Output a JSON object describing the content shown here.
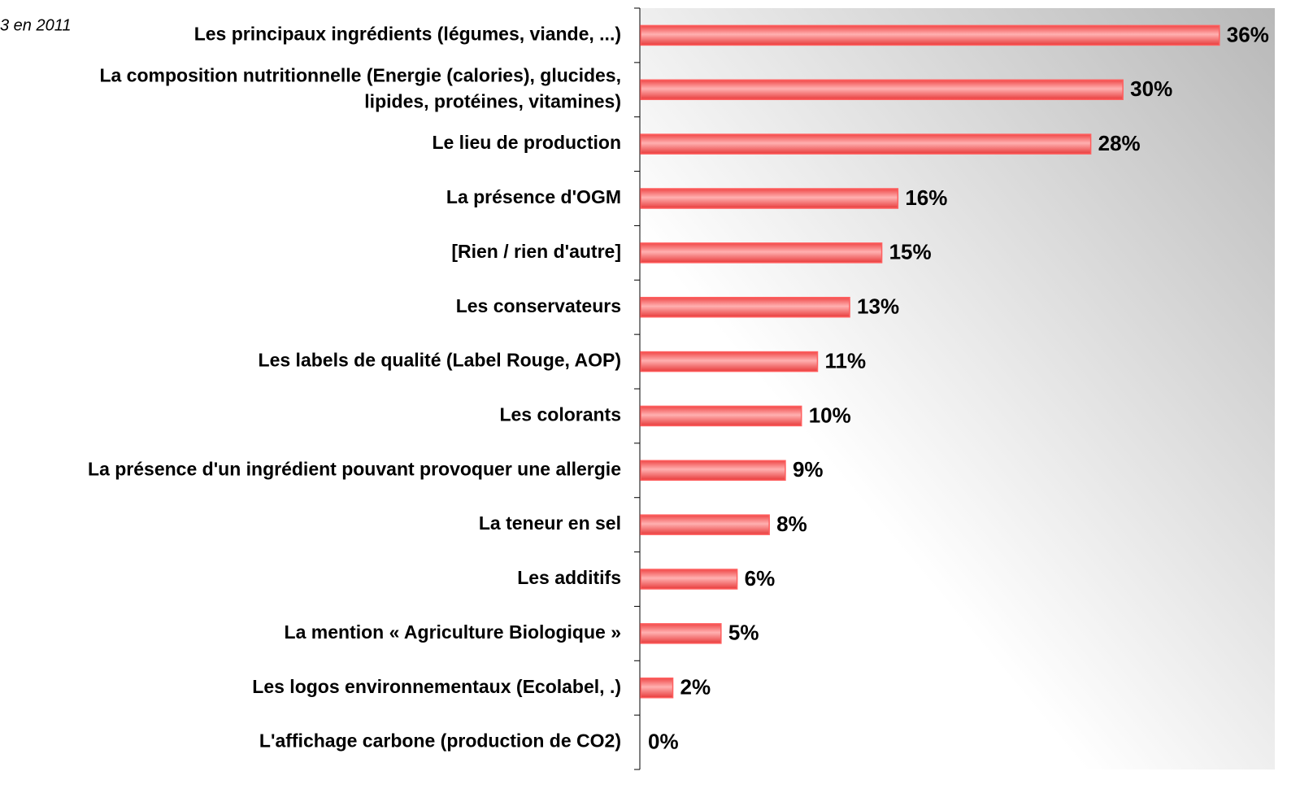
{
  "chart_data": {
    "type": "bar",
    "orientation": "horizontal",
    "annotation": "3  en 2011",
    "categories": [
      "Les principaux ingrédients (légumes, viande, ...)",
      "La composition nutritionnelle (Energie (calories), glucides,\nlipides, protéines, vitamines)",
      "Le lieu de production",
      "La présence d'OGM",
      "[Rien / rien d'autre]",
      "Les conservateurs",
      "Les labels de qualité (Label Rouge, AOP)",
      "Les colorants",
      "La présence d'un ingrédient pouvant provoquer une allergie",
      "La teneur en sel",
      "Les additifs",
      "La mention « Agriculture Biologique »",
      "Les logos environnementaux (Ecolabel, .)",
      "L'affichage carbone (production de CO2)"
    ],
    "values": [
      36,
      30,
      28,
      16,
      15,
      13,
      11,
      10,
      9,
      8,
      6,
      5,
      2,
      0
    ],
    "value_labels": [
      "36%",
      "30%",
      "28%",
      "16%",
      "15%",
      "13%",
      "11%",
      "10%",
      "9%",
      "8%",
      "6%",
      "5%",
      "2%",
      "0%"
    ],
    "color": "#ff5f5f",
    "xlim": [
      0,
      39.5
    ]
  }
}
